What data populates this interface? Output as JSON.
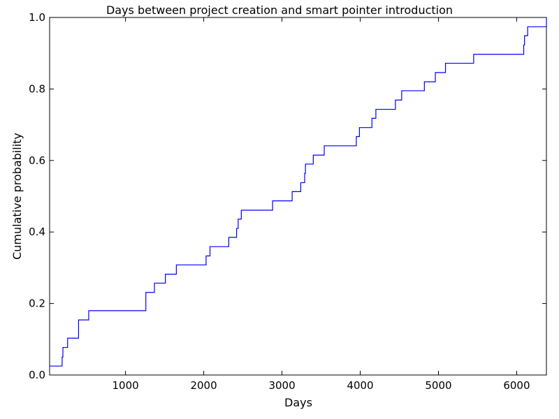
{
  "chart_data": {
    "type": "line",
    "title": "Days between project creation and smart pointer introduction",
    "xlabel": "Days",
    "ylabel": "Cumulative probability",
    "xlim": [
      30,
      6380
    ],
    "ylim": [
      0.0,
      1.0
    ],
    "x_ticks": [
      1000,
      2000,
      3000,
      4000,
      5000,
      6000
    ],
    "x_tick_labels": [
      "1000",
      "2000",
      "3000",
      "4000",
      "5000",
      "6000"
    ],
    "y_ticks": [
      0.0,
      0.2,
      0.4,
      0.6,
      0.8,
      1.0
    ],
    "y_tick_labels": [
      "0.0",
      "0.2",
      "0.4",
      "0.6",
      "0.8",
      "1.0"
    ],
    "grid": false,
    "step": true,
    "line_color": "#0000ff",
    "series": [
      {
        "x": [
          30,
          190,
          200,
          260,
          400,
          530,
          1260,
          1370,
          1510,
          1650,
          2030,
          2080,
          2320,
          2420,
          2440,
          2460,
          2480,
          2880,
          3130,
          3240,
          3290,
          3300,
          3320,
          3400,
          3540,
          3950,
          3990,
          4150,
          4180,
          4200,
          4450,
          4530,
          4820,
          4960,
          5090,
          5450,
          6090,
          6100,
          6120,
          6140,
          6380
        ],
        "y": [
          0.025,
          0.05,
          0.077,
          0.103,
          0.154,
          0.18,
          0.231,
          0.257,
          0.282,
          0.308,
          0.333,
          0.359,
          0.385,
          0.41,
          0.436,
          0.436,
          0.461,
          0.487,
          0.513,
          0.538,
          0.564,
          0.59,
          0.59,
          0.615,
          0.641,
          0.667,
          0.692,
          0.718,
          0.718,
          0.743,
          0.769,
          0.795,
          0.82,
          0.846,
          0.872,
          0.897,
          0.923,
          0.949,
          0.949,
          0.974,
          1.0
        ]
      }
    ]
  }
}
